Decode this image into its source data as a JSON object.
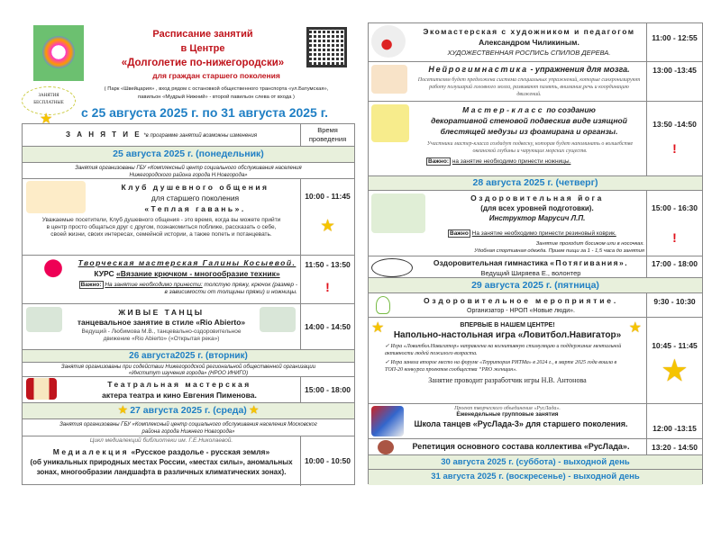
{
  "header": {
    "title_line1": "Расписание занятий",
    "title_line2": "в Центре",
    "title_line3": "«Долголетие по-нижегородски»",
    "title_line4": "для граждан старшего поколения",
    "address_line1": "( Парк «Швейцария» , вход рядом с  остановкой общественного  транспорта «ул.Батумская»,",
    "address_line2": "павильон «Мудрый Нижний» -   второй павильон слева от входа )",
    "free_badge_line1": "ЗАНЯТИЯ",
    "free_badge_line2": "БЕСПЛАТНЫЕ",
    "date_range": "с 25 августа 2025 г. по 31 августа 2025 г."
  },
  "colors": {
    "title_red": "#c0141c",
    "date_blue": "#1f7fc4",
    "day_bg": "#e8f0dc",
    "accent_star": "#f5c400",
    "important_red": "#e0101a"
  },
  "table_header": {
    "activity": "З А Н Я Т И Е",
    "activity_note": "*в программе занятий возможны изменения",
    "time_line1": "Время",
    "time_line2": "проведения"
  },
  "left": {
    "day25": "25 августа 2025 г. (понедельник)",
    "org25_1": "Занятия организованы  ГБУ «Комплексный центр социального обслуживания населения",
    "org25_2": "Нижегородского района города  Н.Новгорода»",
    "club_t1": "Клуб душевного общения",
    "club_t2": "для старшего поколения",
    "club_t3": "«Теплая гавань».",
    "club_d": "Уважаемые посетители,  Клуб душевного общения - это время, когда вы можете прийти в центр просто общаться  друг с другом, познакомиться поближе, рассказать о себе, своей жизни, своих интересах, семейной истории, а также попеть и потанцевать.",
    "club_time": "10:00 - 11:45",
    "knit_t1": "Творческая мастерская Галины Косыевой.",
    "knit_t2a": "КУРС",
    "knit_t2b": "«Вязание  крючком - многообразие  техник»",
    "knit_imp": "Важно:",
    "knit_d1": "На занятие необходимо принести:",
    "knit_d2": "толстую пряжу, крючок  (размер -  в зависимости от толщины пряжи) и ножницы.",
    "knit_time": "11:50 - 13:50",
    "dance_t1": "ЖИВЫЕ ТАНЦЫ",
    "dance_t2": "танцевальное занятие в стиле «Rio Abierto»",
    "dance_d": "Ведущий - Любимова М.В., танцевально-оздоровительное движение «Rio Abierto» («Открытая река»)",
    "dance_time": "14:00 - 14:50",
    "day26": "26 августа2025 г. (вторник)",
    "org26_1": "Занятия организованы  при содействии Нижегородской региональной общественной организации",
    "org26_2": "«Институт изучения города» (НРОО ИНИГО)",
    "theatre_t1": "Театральная мастерская",
    "theatre_t2": "актера театра и кино Евгения Пименова.",
    "theatre_time": "15:00 - 18:00",
    "day27": "27 августа 2025 г. (среда)",
    "org27_1": "Занятия организованы  ГБУ «Комплексный центр социального обслуживания населения  Московског",
    "org27_2": "района города Нижнего Новгорода»",
    "media_pre": "Цикл медиалекций библиотеки им. Г.Е.Николаевой.",
    "media_t1a": "Медиалекция",
    "media_t1b": "«Русское раздолье - русская земля»",
    "media_d": "(об уникальных природных местах России, «местах силы», аномальных зонах, многообразии ландшафта в различных климатических зонах).",
    "media_time": "10:00 - 10:50"
  },
  "right": {
    "eco_t1": "Экомастерская с художником и педагогом",
    "eco_t2": "Александром  Чиликиным.",
    "eco_t3": "ХУДОЖЕСТВЕННАЯ РОСПИСЬ СПИЛОВ ДЕРЕВА.",
    "eco_time": "11:00 - 12:55",
    "neuro_t1a": "Нейрогимнастика",
    "neuro_t1b": " -  упражнения для мозга.",
    "neuro_d": "Посетителям будет предложена система специальных упражнений, которые синхронизируют работу полушарий головного мозга, развивают память, внимание,речь и координацию движений.",
    "neuro_time": "13:00 -13:45",
    "mk_t1a": "Мастер-класс",
    "mk_t1b": " по созданию",
    "mk_t2": "декоративной стеновой подвескив виде изящной",
    "mk_t3": "блестящей медузы из фоамирана и органзы.",
    "mk_d": "Участники мастер-класса создадут подвеску, которая будет напоминать о волшебстве океанской глубины и чарующих морских существ.",
    "mk_imp": "Важно:",
    "mk_imp_text": "на занятие необходимо принести ножницы.",
    "mk_time": "13:50 -14:50",
    "day28": "28 августа 2025 г. (четверг)",
    "yoga_t1": "Оздоровительная йога",
    "yoga_t2": "(для всех уровней подготовки).",
    "yoga_t3": "Инструктор Марусич Л.П.",
    "yoga_imp": "Важно",
    "yoga_imp_text": "На занятие необходимо принести резиновый коврик.",
    "yoga_d1": "Занятие проходит босиком или  в носочках.",
    "yoga_d2": "Удобная спортивная одежда. Прием пищи за 1 - 1,5  часа до занятия",
    "yoga_time": "15:00 - 16:30",
    "gym_t1a": "Оздоровительная гимнастика ",
    "gym_t1b": "«Потягивания».",
    "gym_t2": "Ведущий Ширяева Е., волонтер",
    "gym_time": "17:00 - 18:00",
    "day29": "29 августа 2025 г. (пятница)",
    "health_t1": "Оздоровительное мероприятие.",
    "health_t2": "Организатор - НРОП «Новые люди».",
    "health_time": "9:30 - 10:30",
    "game_t0": "ВПЕРВЫЕ В НАШЕМ ЦЕНТРЕ!",
    "game_t1": "Напольно-настольная игра «Ловитбол.Навигатор»",
    "game_b1": "Игра «Ловитбол.Навигатор» направлена на когнитивную стимуляцию и поддержание ментальной активности людей пожилого возраста.",
    "game_b2": "Игра заняла второе место на форуме «Территория РИТМа» в 2024 г., в марте 2025 года вошла в ТОП-20 конкурса проектов сообщества “PRO женщин».",
    "game_by": "Занятие проводит разработчик игры  Н.В. Антонова",
    "game_time": "10:45 - 11:45",
    "school_pre": "Проект творческого объединения «РусЛада».",
    "school_pre2": "Еженедельные групповые занятия",
    "school_t1": "Школа  танцев «РусЛада-3»  для старшего поколения.",
    "school_time": "12:00 -13:15",
    "rehearsal_t1": "Репетиция основного состава коллектива «РусЛада».",
    "rehearsal_time": "13:20 - 14:50",
    "day30": "30 августа 2025 г. (суббота)  - выходной день",
    "day31": "31 августа 2025 г. (воскресенье) - выходной день"
  }
}
